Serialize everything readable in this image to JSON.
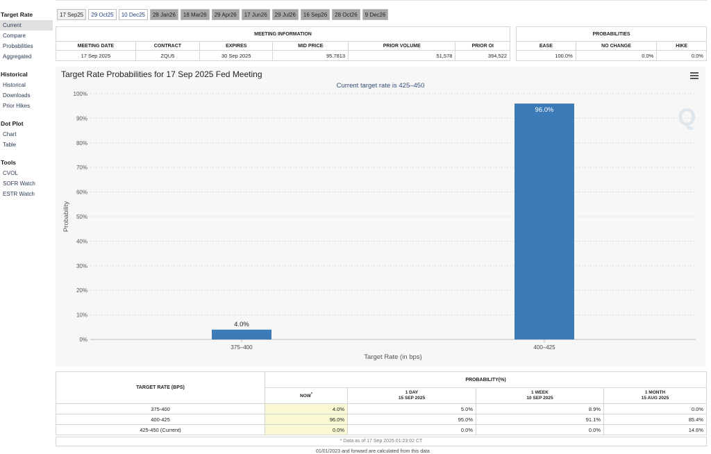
{
  "sidebar": {
    "sections": [
      {
        "title": "Target Rate",
        "items": [
          "Current",
          "Compare",
          "Probabilities",
          "Aggregated"
        ]
      },
      {
        "title": "Historical",
        "items": [
          "Historical",
          "Downloads",
          "Prior Hikes"
        ]
      },
      {
        "title": "Dot Plot",
        "items": [
          "Chart",
          "Table"
        ]
      },
      {
        "title": "Tools",
        "items": [
          "CVOL",
          "SOFR Watch",
          "ESTR Watch"
        ]
      }
    ]
  },
  "tabs": [
    "17 Sep25",
    "29 Oct25",
    "10 Dec25",
    "28 Jan26",
    "18 Mar26",
    "29 Apr26",
    "17 Jun26",
    "29 Jul26",
    "16 Sep26",
    "28 Oct26",
    "9 Dec26"
  ],
  "meeting_info": {
    "caption": "MEETING INFORMATION",
    "headers": [
      "MEETING DATE",
      "CONTRACT",
      "EXPIRES",
      "MID PRICE",
      "PRIOR VOLUME",
      "PRIOR OI"
    ],
    "row": [
      "17 Sep 2025",
      "ZQU5",
      "30 Sep 2025",
      "95.7813",
      "51,578",
      "394,522"
    ]
  },
  "probabilities": {
    "caption": "PROBABILITIES",
    "headers": [
      "EASE",
      "NO CHANGE",
      "HIKE"
    ],
    "row": [
      "100.0%",
      "0.0%",
      "0.0%"
    ]
  },
  "chart": {
    "title": "Target Rate Probabilities for 17 Sep 2025 Fed Meeting",
    "subtitle": "Current target rate is 425–450",
    "watermark": "Q"
  },
  "chart_data": {
    "type": "bar",
    "categories": [
      "375–400",
      "400–425"
    ],
    "values": [
      4.0,
      96.0
    ],
    "data_labels": [
      "4.0%",
      "96.0%"
    ],
    "title": "Target Rate Probabilities for 17 Sep 2025 Fed Meeting",
    "xlabel": "Target Rate (in bps)",
    "ylabel": "Probability",
    "ylim": [
      0,
      100
    ],
    "yticks": [
      "0%",
      "10%",
      "20%",
      "30%",
      "40%",
      "50%",
      "60%",
      "70%",
      "80%",
      "90%",
      "100%"
    ],
    "bar_color": "#3d7ab8"
  },
  "bottom_table": {
    "caption_left": "TARGET RATE (BPS)",
    "caption_right": "PROBABILITY(%)",
    "col_now": "NOW",
    "col_now_mark": "*",
    "cols": [
      {
        "line1": "1 DAY",
        "line2": "15 SEP 2025"
      },
      {
        "line1": "1 WEEK",
        "line2": "10 SEP 2025"
      },
      {
        "line1": "1 MONTH",
        "line2": "15 AUG 2025"
      }
    ],
    "rows": [
      {
        "rate": "375-400",
        "values": [
          "4.0%",
          "5.0%",
          "8.9%",
          "0.0%"
        ]
      },
      {
        "rate": "400-425",
        "values": [
          "96.0%",
          "95.0%",
          "91.1%",
          "85.4%"
        ]
      },
      {
        "rate": "425-450 (Current)",
        "values": [
          "0.0%",
          "0.0%",
          "0.0%",
          "14.6%"
        ]
      }
    ],
    "footnote": "* Data as of 17 Sep 2025 01:23:02 CT"
  },
  "cutoff_text": "01/01/2023 and forward are calculated from this data"
}
